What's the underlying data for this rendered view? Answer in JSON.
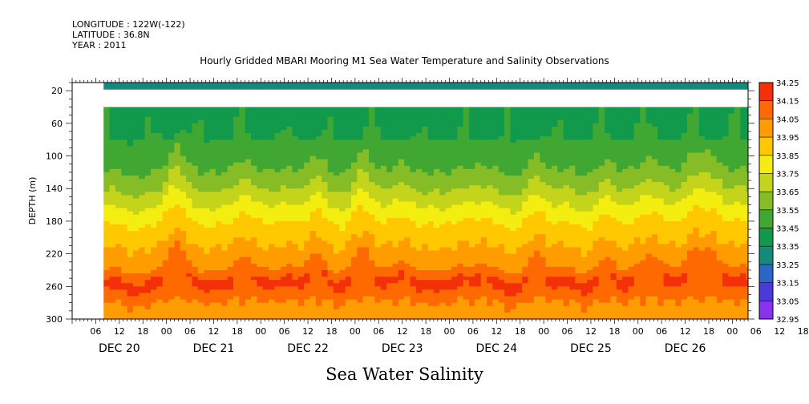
{
  "header": {
    "longitude": "LONGITUDE : 122W(-122)",
    "latitude": "LATITUDE : 36.8N",
    "year": "YEAR : 2011"
  },
  "chart_data": {
    "type": "heatmap",
    "title": "Hourly Gridded MBARI Mooring M1 Sea Water Temperature and Salinity Observations",
    "xlabel": "Sea Water Salinity",
    "ylabel": "DEPTH (m)",
    "x_unit": "hours since DEC 20 00:00",
    "xlim": [
      0,
      172
    ],
    "ylim": [
      300,
      10
    ],
    "y_ticks": [
      20,
      60,
      100,
      140,
      180,
      220,
      260,
      300
    ],
    "x_hour_labels": [
      "06",
      "12",
      "18",
      "00",
      "06",
      "12",
      "18",
      "00",
      "06",
      "12",
      "18",
      "00",
      "06",
      "12",
      "18",
      "00",
      "06",
      "12",
      "18",
      "00",
      "06",
      "12",
      "18",
      "00",
      "06",
      "12",
      "18",
      "00",
      "06",
      "12",
      "18",
      "00"
    ],
    "x_day_labels": [
      "DEC 20",
      "DEC 21",
      "DEC 22",
      "DEC 23",
      "DEC 24",
      "DEC 25",
      "DEC 26"
    ],
    "data_start_hour": 8,
    "depth_bands": [
      {
        "top": 10,
        "bottom": 18,
        "has_data": true
      },
      {
        "top": 18,
        "bottom": 40,
        "has_data": false
      },
      {
        "top": 40,
        "bottom": 300,
        "has_data": true
      }
    ],
    "colorbar": {
      "levels": [
        32.95,
        33.05,
        33.15,
        33.25,
        33.35,
        33.45,
        33.55,
        33.65,
        33.75,
        33.85,
        33.95,
        34.05,
        34.15,
        34.25
      ],
      "colors": [
        "#cc22ee",
        "#8833ee",
        "#4a3ad8",
        "#2a66c8",
        "#168a7a",
        "#129a4c",
        "#40a832",
        "#86bc26",
        "#c4d41a",
        "#f4ee10",
        "#ffc800",
        "#ff9c00",
        "#ff6a00",
        "#f43008",
        "#d81010",
        "#a30000"
      ]
    }
  }
}
